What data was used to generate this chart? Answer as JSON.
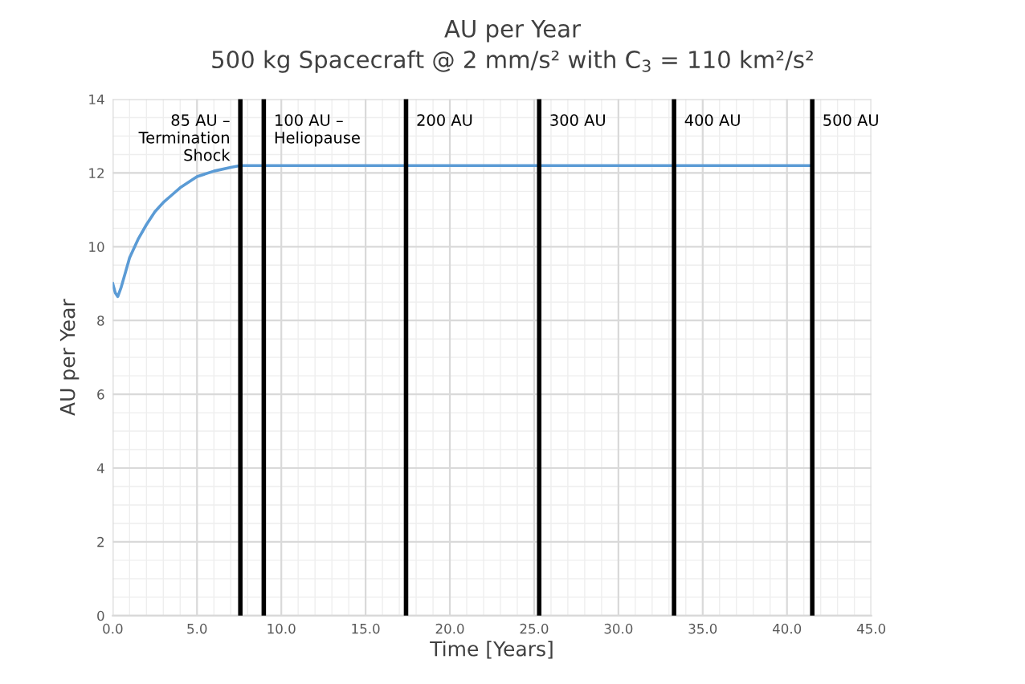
{
  "chart_data": {
    "type": "line",
    "title": "AU per Year",
    "subtitle": "500 kg Spacecraft @ 2 mm/s² with C$_{3}$ = 110 km²/s²",
    "xlabel": "Time [Years]",
    "ylabel": "AU per Year",
    "x": [
      0,
      0.15,
      0.3,
      0.5,
      0.75,
      1,
      1.5,
      2,
      2.5,
      3,
      3.5,
      4,
      5,
      6,
      7,
      7.57,
      9,
      17.4,
      25.3,
      33.3,
      41.5
    ],
    "series": [
      {
        "color": "#5b9bd5",
        "values": [
          9.0,
          8.75,
          8.65,
          8.9,
          9.3,
          9.7,
          10.2,
          10.6,
          10.95,
          11.2,
          11.4,
          11.6,
          11.9,
          12.05,
          12.15,
          12.2,
          12.2,
          12.2,
          12.2,
          12.2,
          12.2
        ]
      }
    ],
    "xlim": [
      0,
      45
    ],
    "ylim": [
      0,
      14
    ],
    "xticks": [
      {
        "value": 0,
        "label": "0.0"
      },
      {
        "value": 5,
        "label": "5.0"
      },
      {
        "value": 10,
        "label": "10.0"
      },
      {
        "value": 15,
        "label": "15.0"
      },
      {
        "value": 20,
        "label": "20.0"
      },
      {
        "value": 25,
        "label": "25.0"
      },
      {
        "value": 30,
        "label": "30.0"
      },
      {
        "value": 35,
        "label": "35.0"
      },
      {
        "value": 40,
        "label": "40.0"
      },
      {
        "value": 45,
        "label": "45.0"
      }
    ],
    "yticks": [
      0,
      2,
      4,
      6,
      8,
      10,
      12,
      14
    ],
    "ref_lines": [
      {
        "axis": "x",
        "value": 7.57,
        "label": "85 AU –\nTermination\nShock",
        "color": "#000000"
      },
      {
        "axis": "x",
        "value": 8.96,
        "label": "100 AU –\nHeliopause",
        "color": "#000000"
      },
      {
        "axis": "x",
        "value": 17.4,
        "label": "200 AU",
        "color": "#000000"
      },
      {
        "axis": "x",
        "value": 25.3,
        "label": "300 AU",
        "color": "#000000"
      },
      {
        "axis": "x",
        "value": 33.3,
        "label": "400 AU",
        "color": "#000000"
      },
      {
        "axis": "x",
        "value": 41.5,
        "label": "500 AU",
        "color": "#000000"
      }
    ],
    "grid": true,
    "marker": "none",
    "line_style": "solid"
  }
}
